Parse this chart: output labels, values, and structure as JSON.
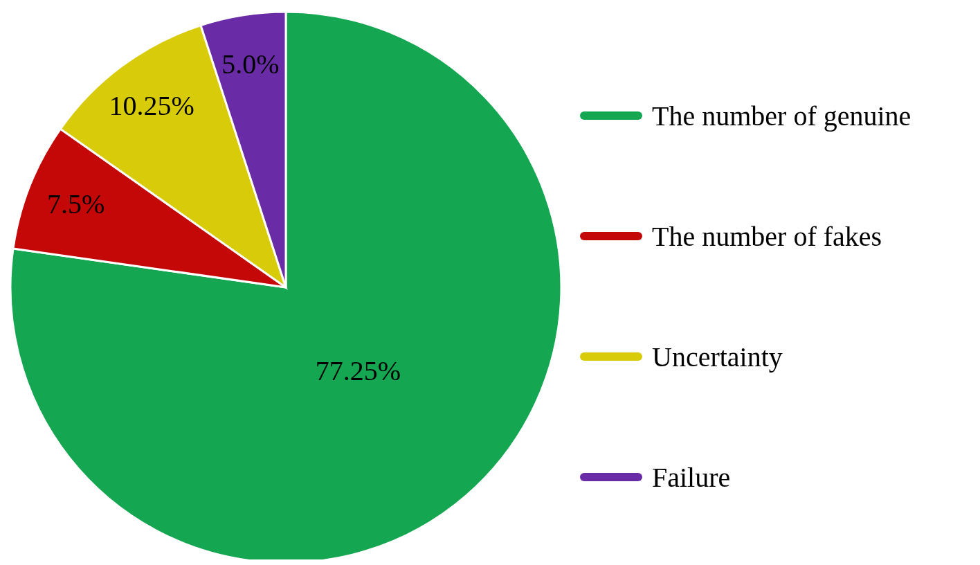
{
  "chart_data": {
    "type": "pie",
    "categories": [
      "The number of genuine",
      "The number of fakes",
      "Uncertainty",
      "Failure"
    ],
    "values": [
      77.25,
      7.5,
      10.25,
      5.0
    ],
    "colors": [
      "#14a650",
      "#c40808",
      "#d8cc0a",
      "#6a2ca6"
    ],
    "value_labels": [
      "77.25%",
      "7.5%",
      "10.25%",
      "5.0%"
    ],
    "legend": "right"
  }
}
